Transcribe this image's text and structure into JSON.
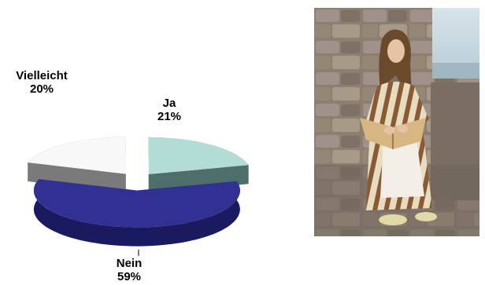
{
  "chart_data": {
    "type": "pie",
    "title": "",
    "style": "3d-exploded",
    "slices": [
      {
        "label": "Ja",
        "value": 21,
        "display": "21%",
        "color": "#b4dcd6",
        "side_color": "#4d6e6a"
      },
      {
        "label": "Nein",
        "value": 59,
        "display": "59%",
        "color": "#313194",
        "side_color": "#1a1a60"
      },
      {
        "label": "Vielleicht",
        "value": 20,
        "display": "20%",
        "color": "#f8f8f8",
        "side_color": "#7a7a7a"
      }
    ],
    "start_angle_deg": -90,
    "direction": "clockwise"
  },
  "photo": {
    "subject": "woman in striped medieval dress seated by stone wall with open book"
  }
}
